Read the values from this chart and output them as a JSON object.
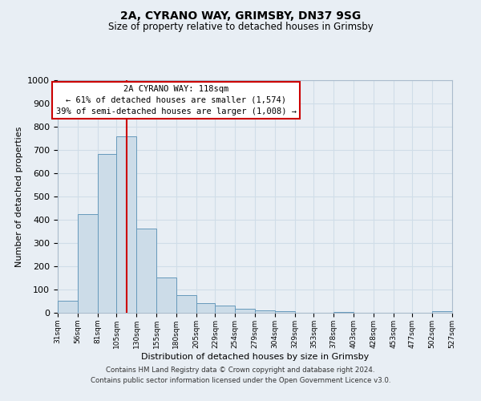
{
  "title": "2A, CYRANO WAY, GRIMSBY, DN37 9SG",
  "subtitle": "Size of property relative to detached houses in Grimsby",
  "xlabel": "Distribution of detached houses by size in Grimsby",
  "ylabel": "Number of detached properties",
  "bar_color": "#ccdce8",
  "bar_edge_color": "#6699bb",
  "grid_color": "#d0dde8",
  "background_color": "#e8eef4",
  "vline_x": 118,
  "vline_color": "#cc0000",
  "bin_edges": [
    31,
    56,
    81,
    105,
    130,
    155,
    180,
    205,
    229,
    254,
    279,
    304,
    329,
    353,
    378,
    403,
    428,
    453,
    477,
    502,
    527
  ],
  "bar_heights": [
    52,
    425,
    683,
    757,
    362,
    153,
    76,
    40,
    31,
    18,
    10,
    8,
    1,
    0,
    5,
    1,
    0,
    0,
    0,
    8
  ],
  "tick_labels": [
    "31sqm",
    "56sqm",
    "81sqm",
    "105sqm",
    "130sqm",
    "155sqm",
    "180sqm",
    "205sqm",
    "229sqm",
    "254sqm",
    "279sqm",
    "304sqm",
    "329sqm",
    "353sqm",
    "378sqm",
    "403sqm",
    "428sqm",
    "453sqm",
    "477sqm",
    "502sqm",
    "527sqm"
  ],
  "ylim": [
    0,
    1000
  ],
  "yticks": [
    0,
    100,
    200,
    300,
    400,
    500,
    600,
    700,
    800,
    900,
    1000
  ],
  "annotation_title": "2A CYRANO WAY: 118sqm",
  "annotation_line1": "← 61% of detached houses are smaller (1,574)",
  "annotation_line2": "39% of semi-detached houses are larger (1,008) →",
  "annotation_box_color": "#ffffff",
  "annotation_box_edge": "#cc0000",
  "footer_line1": "Contains HM Land Registry data © Crown copyright and database right 2024.",
  "footer_line2": "Contains public sector information licensed under the Open Government Licence v3.0."
}
